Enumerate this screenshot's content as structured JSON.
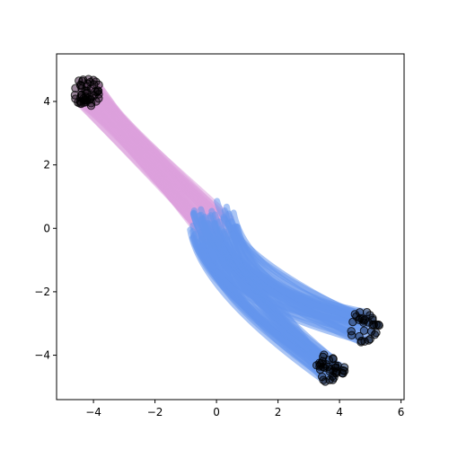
{
  "chart_data": {
    "type": "line",
    "title": "",
    "xlabel": "",
    "ylabel": "",
    "xlim": [
      -5.2,
      6.1
    ],
    "ylim": [
      -5.4,
      5.5
    ],
    "xticks": [
      -4,
      -2,
      0,
      2,
      4,
      6
    ],
    "yticks": [
      -4,
      -2,
      0,
      2,
      4
    ],
    "xtick_labels": [
      "−4",
      "−2",
      "0",
      "2",
      "4",
      "6"
    ],
    "ytick_labels": [
      "−4",
      "−2",
      "0",
      "2",
      "4"
    ],
    "grid": false,
    "legend": "none",
    "colors": {
      "upper_band": "#dda0dd",
      "lower_band": "#6495ed",
      "endpoints": "#000000"
    },
    "series": [
      {
        "kind": "straight-trajectories",
        "color": "#dda0dd",
        "start_region": {
          "center": [
            0,
            0
          ],
          "radius": 0.6
        },
        "end_cluster": {
          "center": [
            -4.2,
            4.3
          ],
          "spread": 0.45
        },
        "count": 50
      },
      {
        "kind": "curved-trajectories",
        "color": "#6495ed",
        "start_region": {
          "center": [
            -0.1,
            0.1
          ],
          "radius": 0.8
        },
        "end_cluster_a": {
          "center": [
            3.7,
            -4.4
          ],
          "spread": 0.5
        },
        "end_cluster_b": {
          "center": [
            4.8,
            -3.1
          ],
          "spread": 0.5
        },
        "count": 70
      }
    ]
  }
}
